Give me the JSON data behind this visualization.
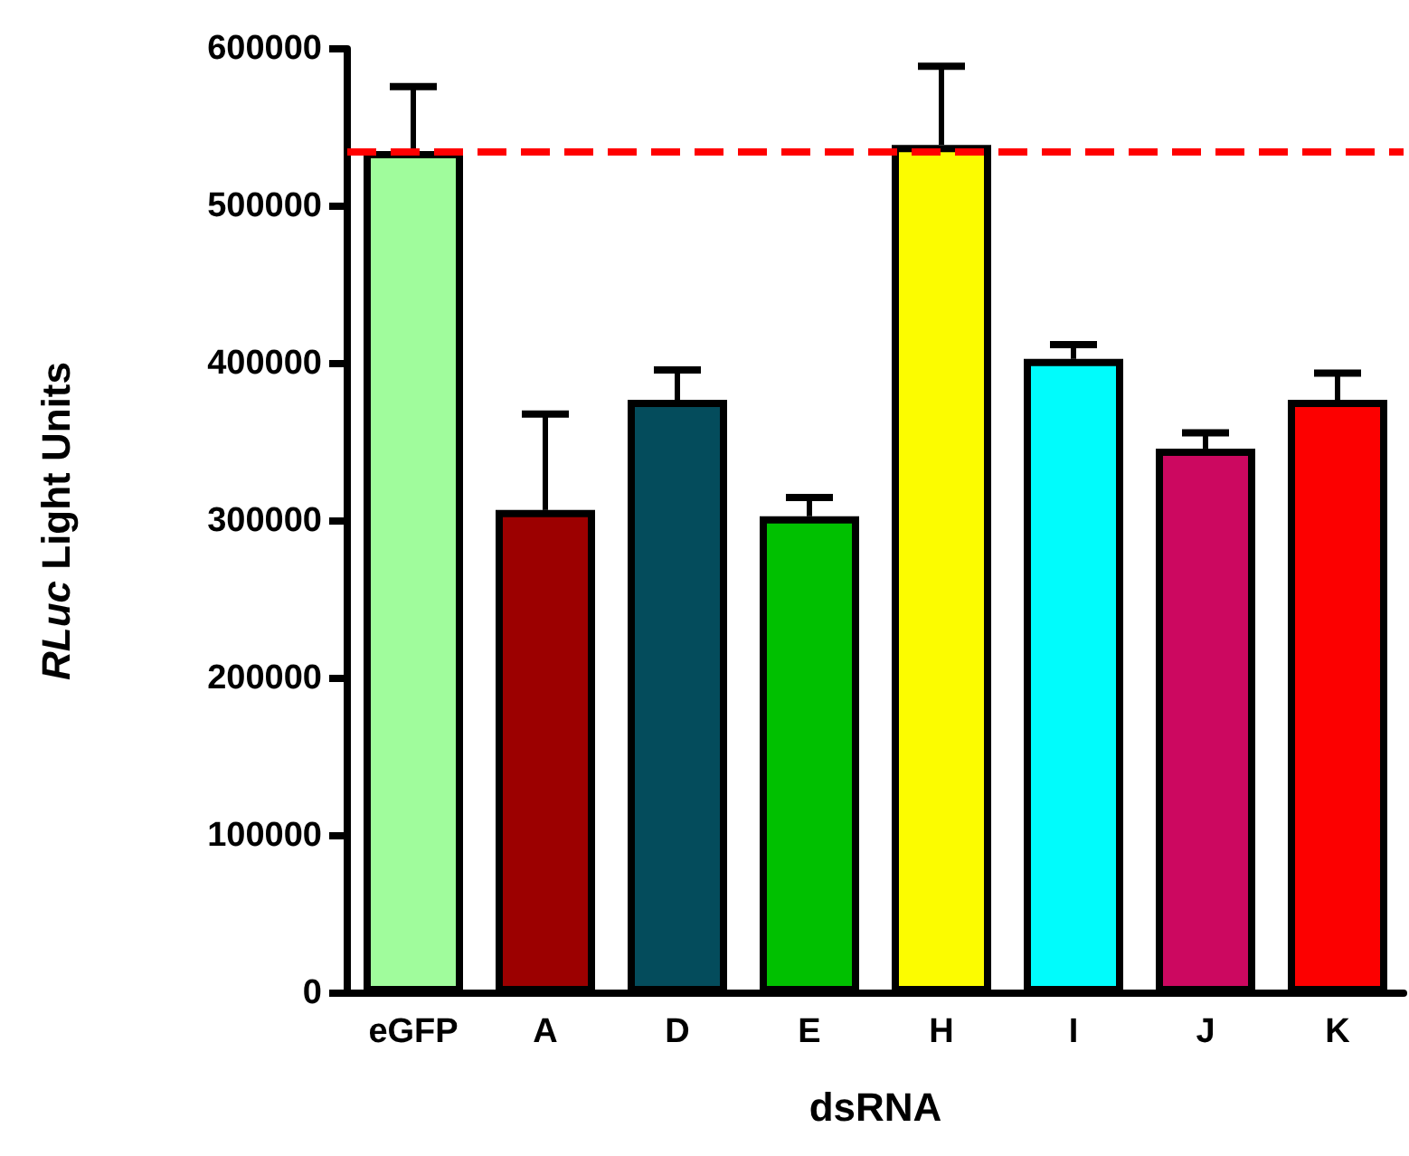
{
  "chart_data": {
    "type": "bar",
    "xlabel": "dsRNA",
    "ylabel": "RLuc Light Units",
    "categories": [
      "eGFP",
      "A",
      "D",
      "E",
      "H",
      "I",
      "J",
      "K"
    ],
    "values": [
      535000,
      307000,
      377000,
      303000,
      539000,
      403000,
      346000,
      377000
    ],
    "errors": [
      41000,
      61000,
      19000,
      12000,
      50000,
      9000,
      10000,
      17000
    ],
    "colors": [
      "#a0fc9c",
      "#9c0000",
      "#044c5c",
      "#00c000",
      "#fcfc00",
      "#00fcfc",
      "#cc0860",
      "#fc0000"
    ],
    "ylim": [
      0,
      600000
    ],
    "yticks": [
      0,
      100000,
      200000,
      300000,
      400000,
      500000,
      600000
    ],
    "grid": false,
    "ref_lines": [
      {
        "axis": "y",
        "value": 535000,
        "color": "#ff0000",
        "line_style": "dashed"
      }
    ]
  }
}
